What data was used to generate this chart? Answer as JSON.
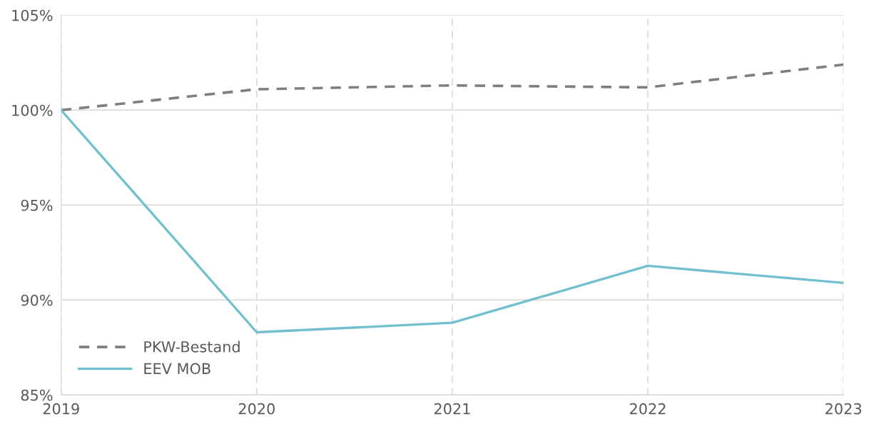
{
  "chart_data": {
    "type": "line",
    "x": [
      2019,
      2020,
      2021,
      2022,
      2023
    ],
    "series": [
      {
        "name": "PKW-Bestand",
        "color": "#7f7f7f",
        "line_style": "dashed",
        "values": [
          100,
          101.1,
          101.3,
          101.2,
          102.4
        ]
      },
      {
        "name": "EEV MOB",
        "color": "#72bfd0",
        "line_style": "solid",
        "values": [
          100,
          88.3,
          88.8,
          91.8,
          90.9
        ]
      }
    ],
    "xlim": [
      2019,
      2023
    ],
    "xticks": [
      2019,
      2020,
      2021,
      2022,
      2023
    ],
    "ylim": [
      85,
      105
    ],
    "yticks": [
      {
        "value": 85,
        "label": "85%"
      },
      {
        "value": 90,
        "label": "90%"
      },
      {
        "value": 95,
        "label": "95%"
      },
      {
        "value": 100,
        "label": "100%"
      },
      {
        "value": 105,
        "label": "105%"
      }
    ],
    "grid": true,
    "legend": "bottom left",
    "marker": "none"
  }
}
